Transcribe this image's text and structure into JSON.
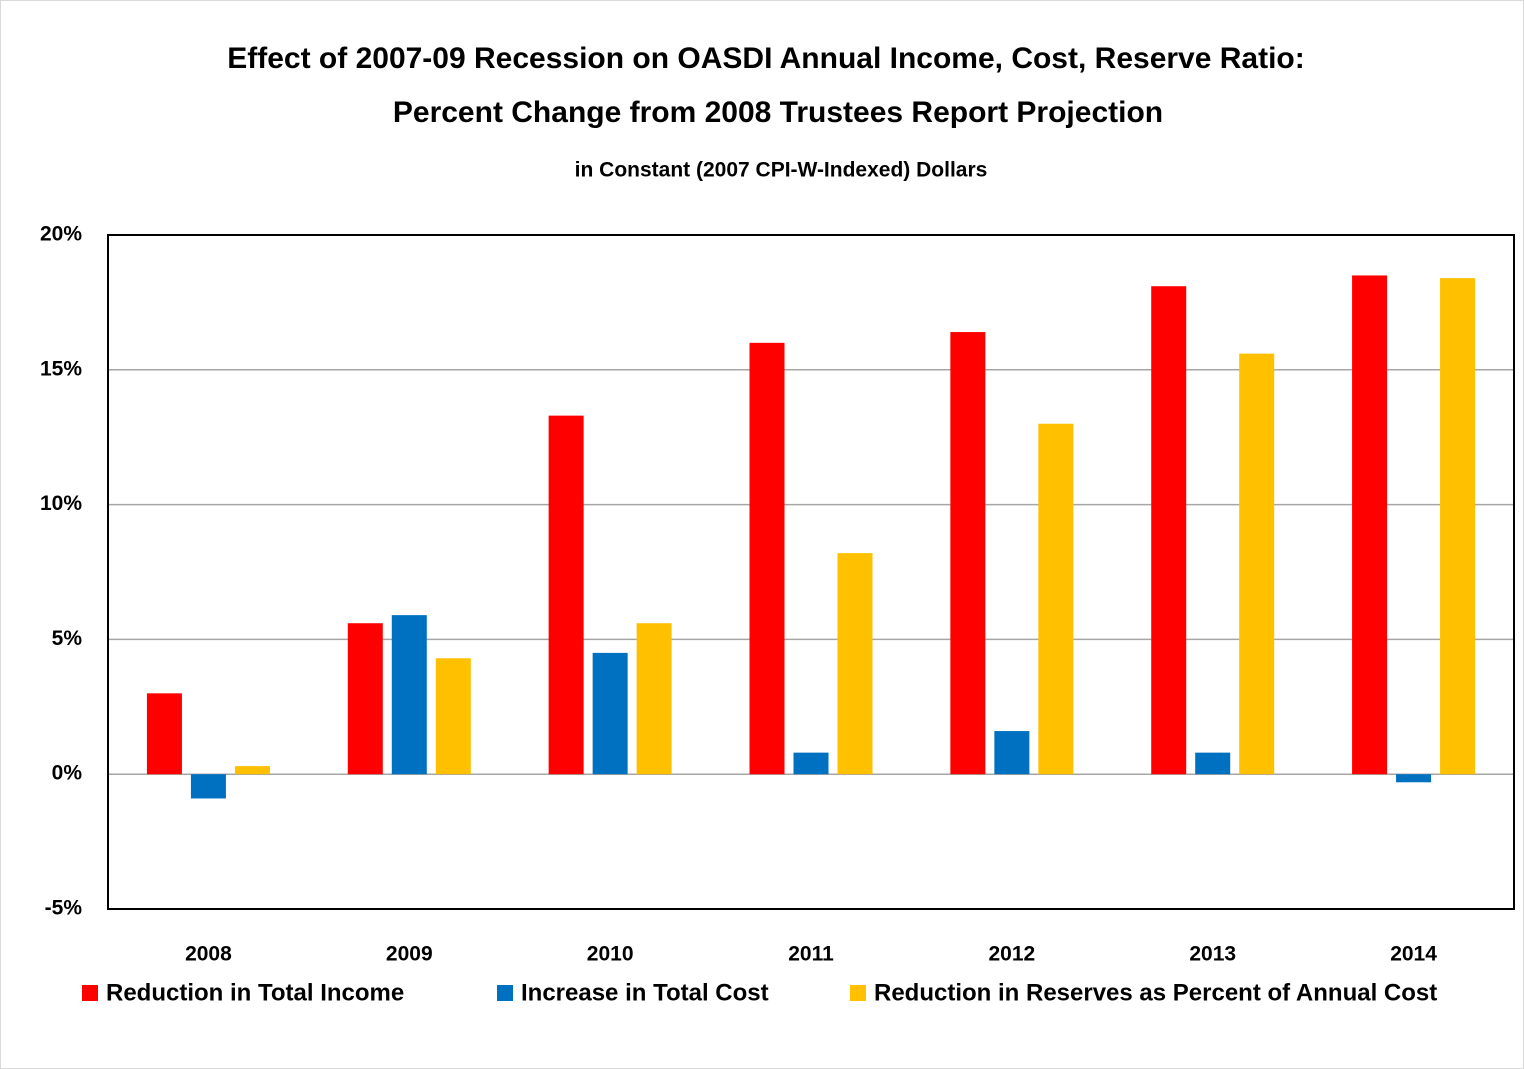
{
  "chart_data": {
    "type": "bar",
    "title": [
      "Effect of 2007-09 Recession on OASDI Annual Income, Cost, Reserve Ratio:",
      "Percent Change from 2008 Trustees Report Projection"
    ],
    "subtitle": "in Constant (2007  CPI-W-Indexed) Dollars",
    "categories": [
      "2008",
      "2009",
      "2010",
      "2011",
      "2012",
      "2013",
      "2014"
    ],
    "series": [
      {
        "name": "Reduction in Total Income",
        "color": "#ff0000",
        "values": [
          3.0,
          5.6,
          13.3,
          16.0,
          16.4,
          18.1,
          18.5
        ]
      },
      {
        "name": "Increase in Total Cost",
        "color": "#0070c0",
        "values": [
          -0.9,
          5.9,
          4.5,
          0.8,
          1.6,
          0.8,
          -0.3
        ]
      },
      {
        "name": "Reduction in Reserves as Percent of Annual Cost",
        "color": "#ffc000",
        "values": [
          0.3,
          4.3,
          5.6,
          8.2,
          13.0,
          15.6,
          18.4
        ]
      }
    ],
    "ylim": [
      -5,
      20
    ],
    "yticks": [
      {
        "value": -5,
        "label": "-5%"
      },
      {
        "value": 0,
        "label": "0%"
      },
      {
        "value": 5,
        "label": "5%"
      },
      {
        "value": 10,
        "label": "10%"
      },
      {
        "value": 15,
        "label": "15%"
      },
      {
        "value": 20,
        "label": "20%"
      }
    ],
    "grid": true,
    "legend": "bottom"
  }
}
